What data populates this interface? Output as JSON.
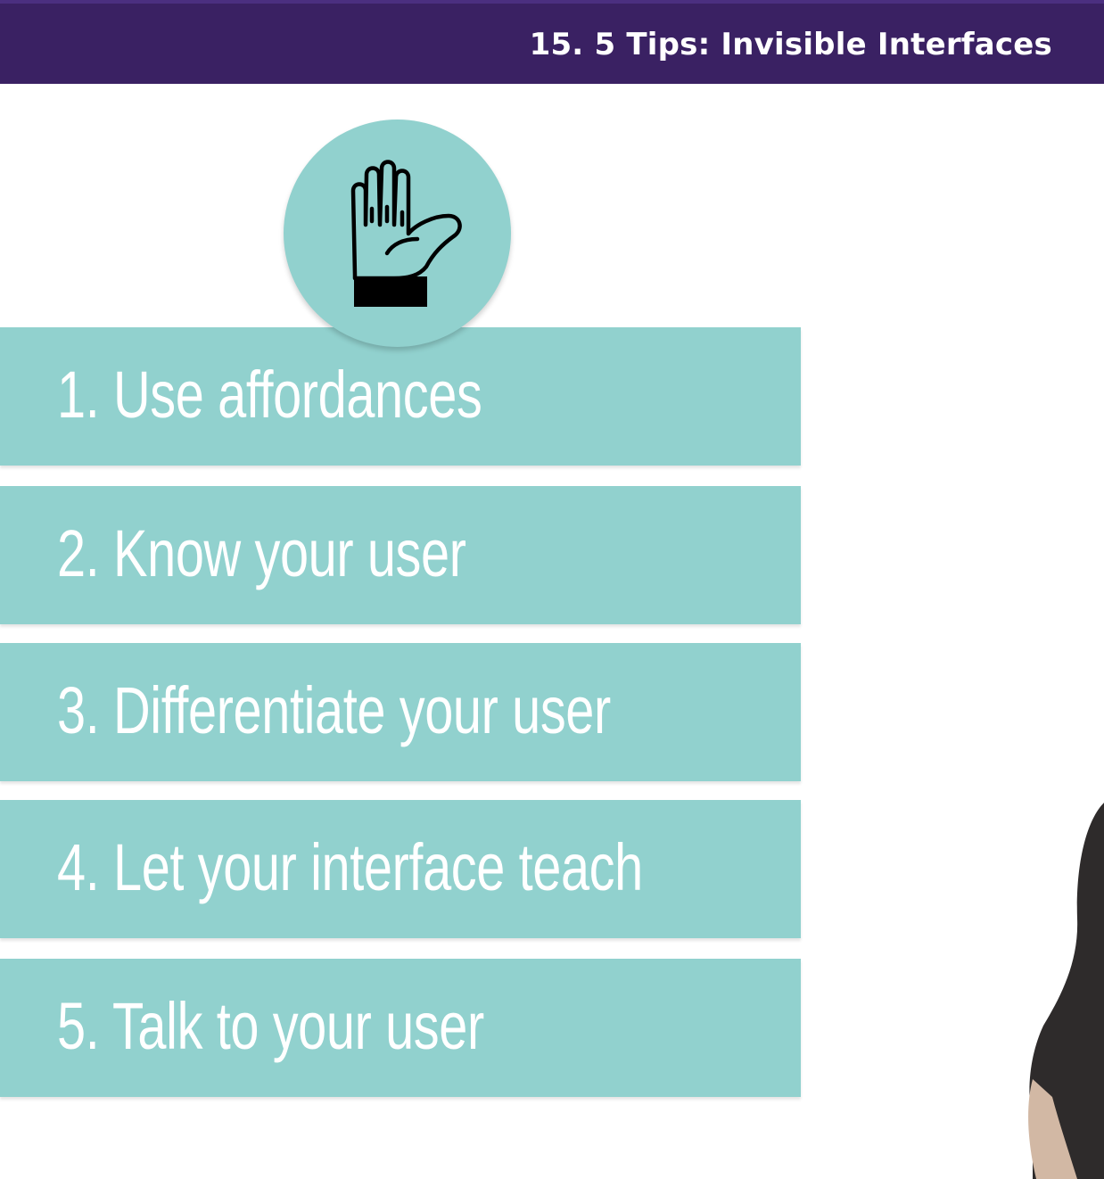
{
  "header": {
    "title": "15. 5 Tips: Invisible Interfaces"
  },
  "badge": {
    "icon": "raised-hand-icon"
  },
  "tips": [
    {
      "label": "1. Use affordances"
    },
    {
      "label": "2. Know your user"
    },
    {
      "label": "3. Differentiate your user"
    },
    {
      "label": "4. Let your interface teach"
    },
    {
      "label": "5. Talk to your user"
    }
  ],
  "colors": {
    "header_bg": "#3a2163",
    "tip_bg": "#91d1ce",
    "tip_text": "#ffffff"
  }
}
